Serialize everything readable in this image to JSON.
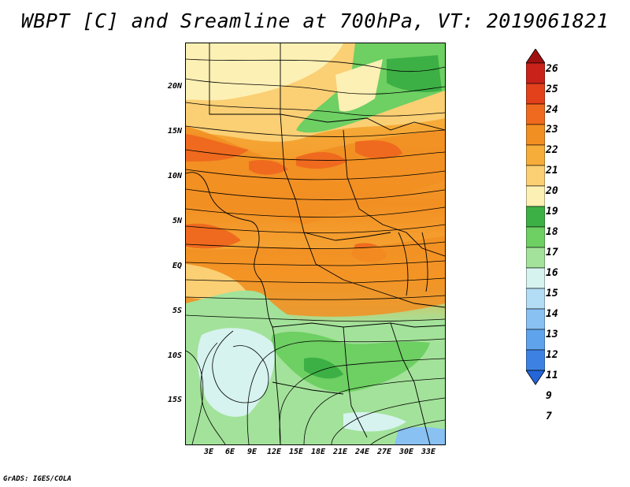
{
  "title": "WBPT [C] and Sreamline at 700hPa, VT: 2019061821",
  "footer": "GrADS: IGES/COLA",
  "lat_labels": [
    "20N",
    "15N",
    "10N",
    "5N",
    "EQ",
    "5S",
    "10S",
    "15S"
  ],
  "lon_labels": [
    "3E",
    "6E",
    "9E",
    "12E",
    "15E",
    "18E",
    "21E",
    "24E",
    "27E",
    "30E",
    "33E"
  ],
  "colorbar": {
    "labels": [
      "26",
      "25",
      "24",
      "23",
      "22",
      "21",
      "20",
      "19",
      "18",
      "17",
      "16",
      "15",
      "14",
      "13",
      "12",
      "11",
      "9",
      "7"
    ],
    "colors": [
      "#a01010",
      "#c8221a",
      "#e3401c",
      "#ef6a1e",
      "#f28f22",
      "#f6ad3a",
      "#fbcf74",
      "#fdf0b4",
      "#3cb044",
      "#6ecf63",
      "#a3e29a",
      "#d6f3ef",
      "#b3dcf5",
      "#88c1f2",
      "#5fa3ec",
      "#3d82e3",
      "#2466d8"
    ]
  },
  "colors": {
    "hot": "#ef6a1e",
    "warm": "#f28f22",
    "mild": "#fbcf74",
    "cool_green": "#6ecf63",
    "cold_blue": "#d6f3ef"
  }
}
